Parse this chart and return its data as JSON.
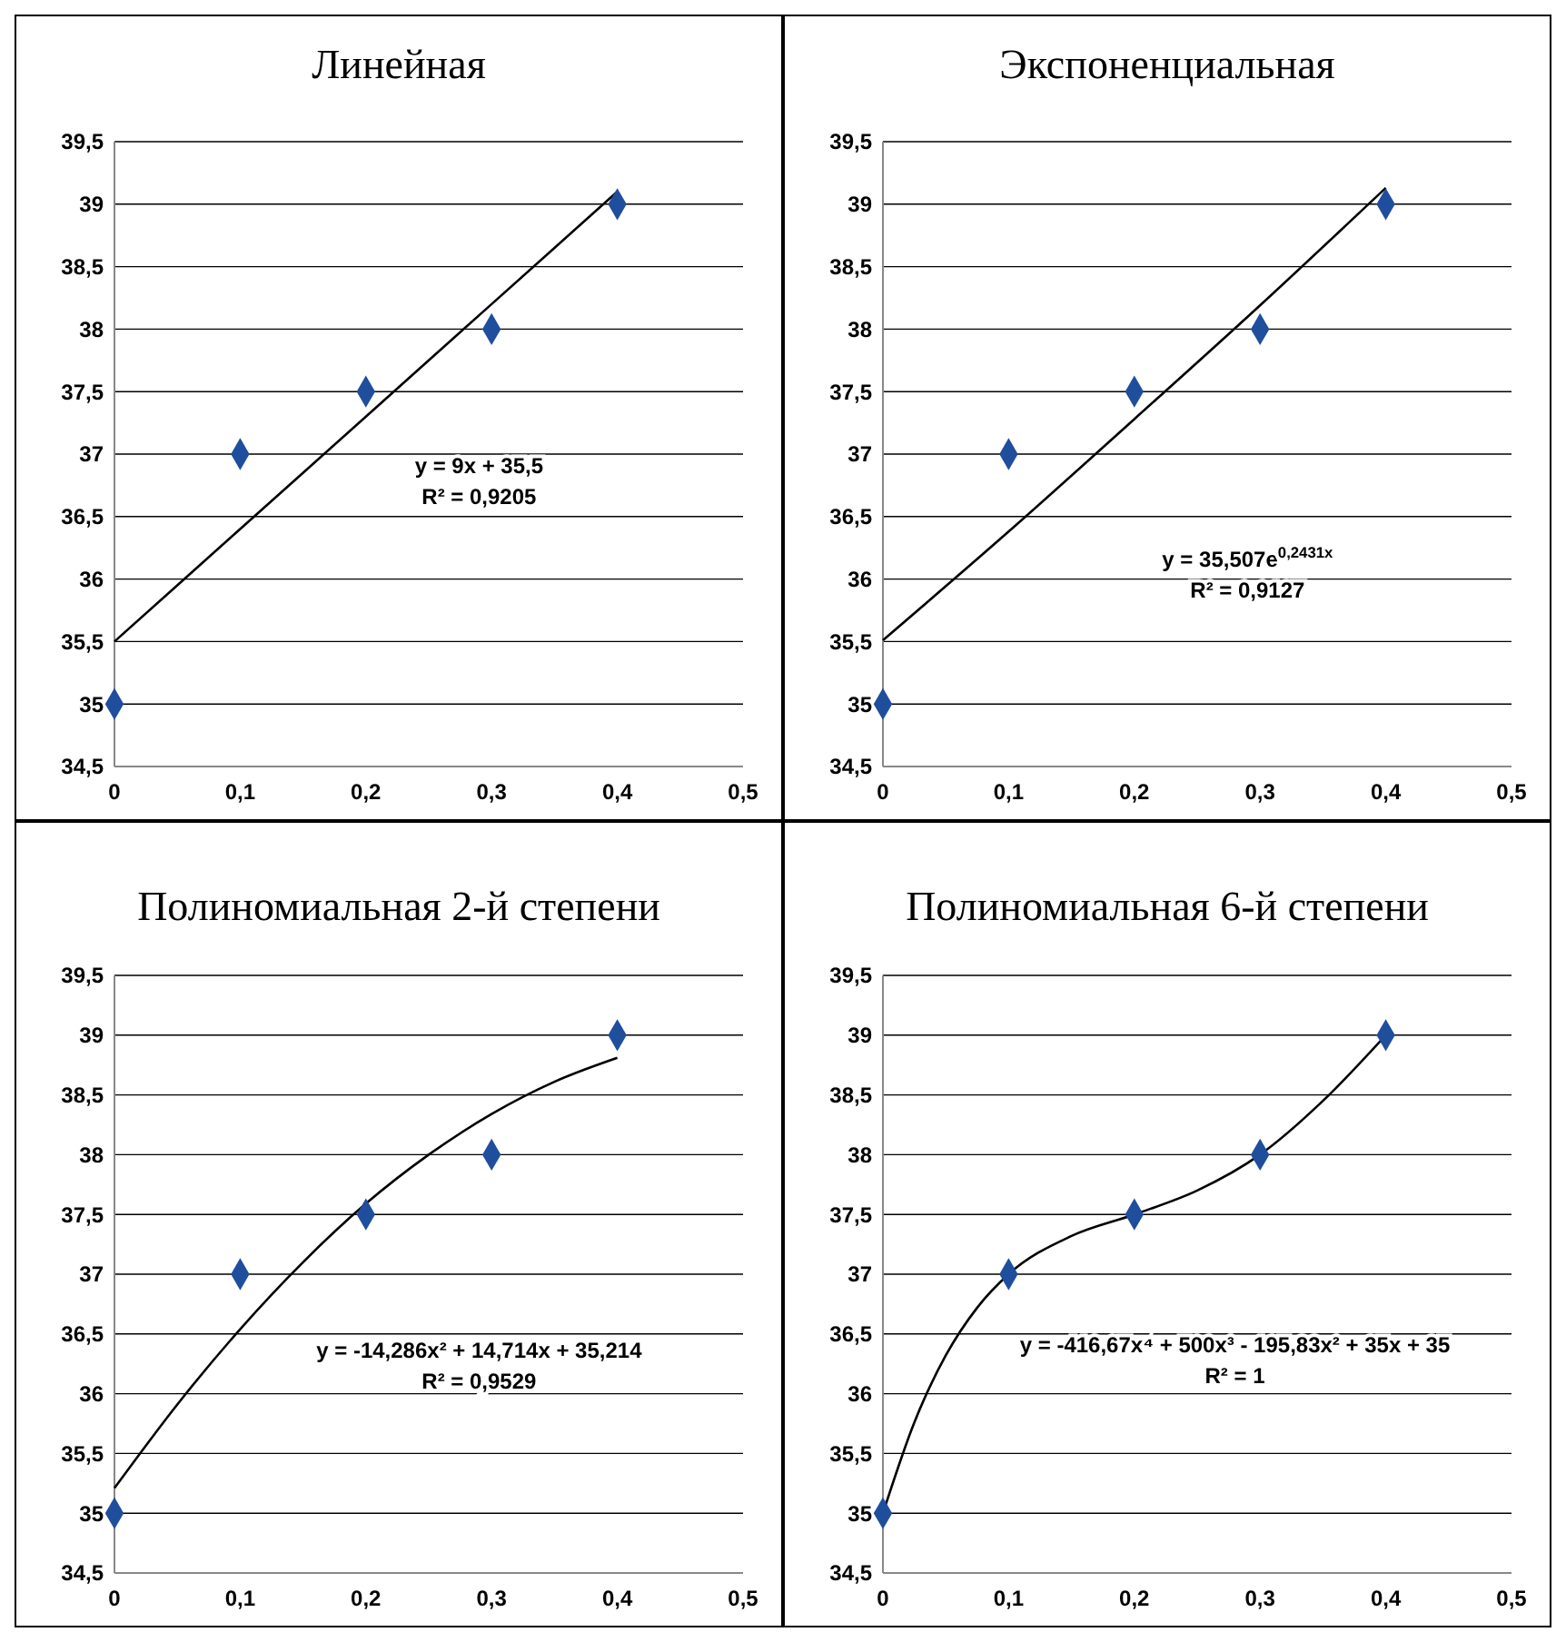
{
  "chart_data": [
    {
      "type": "scatter",
      "title": "Линейная",
      "xlim": [
        0,
        0.5
      ],
      "ylim": [
        34.5,
        39.5
      ],
      "grid": "y",
      "line_style": "solid",
      "xticks": [
        {
          "value": 0,
          "label": "0"
        },
        {
          "value": 0.1,
          "label": "0,1"
        },
        {
          "value": 0.2,
          "label": "0,2"
        },
        {
          "value": 0.3,
          "label": "0,3"
        },
        {
          "value": 0.4,
          "label": "0,4"
        },
        {
          "value": 0.5,
          "label": "0,5"
        }
      ],
      "yticks": [
        {
          "value": 34.5,
          "label": "34,5"
        },
        35,
        {
          "value": 35.5,
          "label": "35,5"
        },
        36,
        {
          "value": 36.5,
          "label": "36,5"
        },
        37,
        {
          "value": 37.5,
          "label": "37,5"
        },
        38,
        {
          "value": 38.5,
          "label": "38,5"
        },
        39,
        {
          "value": 39.5,
          "label": "39,5"
        }
      ],
      "annotations": [
        "y = 9x + 35,5",
        "R² = 0,9205"
      ],
      "series": [
        {
          "color": "#1f4e9c",
          "marker": "diamond",
          "x": [
            0,
            0.1,
            0.2,
            0.3,
            0.4
          ],
          "values": [
            35,
            37,
            37.5,
            38,
            39
          ]
        },
        {
          "type": "line",
          "color": "#000000",
          "marker": "none",
          "x": [
            0,
            0.1,
            0.2,
            0.3,
            0.4
          ],
          "values": [
            35.5,
            36.4,
            37.3,
            38.2,
            39.1
          ]
        }
      ]
    },
    {
      "type": "scatter",
      "title": "Экспоненциальная",
      "xlim": [
        0,
        0.5
      ],
      "ylim": [
        34.5,
        39.5
      ],
      "grid": "y",
      "line_style": "solid",
      "xticks": [
        {
          "value": 0,
          "label": "0"
        },
        {
          "value": 0.1,
          "label": "0,1"
        },
        {
          "value": 0.2,
          "label": "0,2"
        },
        {
          "value": 0.3,
          "label": "0,3"
        },
        {
          "value": 0.4,
          "label": "0,4"
        },
        {
          "value": 0.5,
          "label": "0,5"
        }
      ],
      "yticks": [
        {
          "value": 34.5,
          "label": "34,5"
        },
        35,
        {
          "value": 35.5,
          "label": "35,5"
        },
        36,
        {
          "value": 36.5,
          "label": "36,5"
        },
        37,
        {
          "value": 37.5,
          "label": "37,5"
        },
        38,
        {
          "value": 38.5,
          "label": "38,5"
        },
        39,
        {
          "value": 39.5,
          "label": "39,5"
        }
      ],
      "annotations": [
        "y = 35,507e$^{0,2431x}$",
        "R² = 0,9127"
      ],
      "series": [
        {
          "color": "#1f4e9c",
          "marker": "diamond",
          "x": [
            0,
            0.1,
            0.2,
            0.3,
            0.4
          ],
          "values": [
            35,
            37,
            37.5,
            38,
            39
          ]
        },
        {
          "type": "line",
          "color": "#000000",
          "marker": "none",
          "x": [
            0,
            0.1,
            0.2,
            0.3,
            0.4
          ],
          "values": [
            35.51,
            36.38,
            37.28,
            38.19,
            39.13
          ]
        }
      ]
    },
    {
      "type": "scatter",
      "title": "Полиномиальная 2-й степени",
      "xlim": [
        0,
        0.5
      ],
      "ylim": [
        34.5,
        39.5
      ],
      "grid": "y",
      "line_style": "solid",
      "xticks": [
        {
          "value": 0,
          "label": "0"
        },
        {
          "value": 0.1,
          "label": "0,1"
        },
        {
          "value": 0.2,
          "label": "0,2"
        },
        {
          "value": 0.3,
          "label": "0,3"
        },
        {
          "value": 0.4,
          "label": "0,4"
        },
        {
          "value": 0.5,
          "label": "0,5"
        }
      ],
      "yticks": [
        {
          "value": 34.5,
          "label": "34,5"
        },
        35,
        {
          "value": 35.5,
          "label": "35,5"
        },
        36,
        {
          "value": 36.5,
          "label": "36,5"
        },
        37,
        {
          "value": 37.5,
          "label": "37,5"
        },
        38,
        {
          "value": 38.5,
          "label": "38,5"
        },
        39,
        {
          "value": 39.5,
          "label": "39,5"
        }
      ],
      "annotations": [
        "y = -14,286x² + 14,714x + 35,214",
        "R² = 0,9529"
      ],
      "series": [
        {
          "color": "#1f4e9c",
          "marker": "diamond",
          "x": [
            0,
            0.1,
            0.2,
            0.3,
            0.4
          ],
          "values": [
            35,
            37,
            37.5,
            38,
            39
          ]
        },
        {
          "type": "line",
          "color": "#000000",
          "marker": "none",
          "x": [
            0,
            0.05,
            0.1,
            0.15,
            0.2,
            0.25,
            0.3,
            0.35,
            0.4
          ],
          "values": [
            35.21,
            35.91,
            36.54,
            37.1,
            37.59,
            38.0,
            38.34,
            38.61,
            38.81
          ]
        }
      ]
    },
    {
      "type": "scatter",
      "title": "Полиномиальная 6-й степени",
      "xlim": [
        0,
        0.5
      ],
      "ylim": [
        34.5,
        39.5
      ],
      "grid": "y",
      "line_style": "solid",
      "xticks": [
        {
          "value": 0,
          "label": "0"
        },
        {
          "value": 0.1,
          "label": "0,1"
        },
        {
          "value": 0.2,
          "label": "0,2"
        },
        {
          "value": 0.3,
          "label": "0,3"
        },
        {
          "value": 0.4,
          "label": "0,4"
        },
        {
          "value": 0.5,
          "label": "0,5"
        }
      ],
      "yticks": [
        {
          "value": 34.5,
          "label": "34,5"
        },
        35,
        {
          "value": 35.5,
          "label": "35,5"
        },
        36,
        {
          "value": 36.5,
          "label": "36,5"
        },
        37,
        {
          "value": 37.5,
          "label": "37,5"
        },
        38,
        {
          "value": 38.5,
          "label": "38,5"
        },
        39,
        {
          "value": 39.5,
          "label": "39,5"
        }
      ],
      "annotations": [
        "y = -416,67x⁴ + 500x³ - 195,83x² + 35x + 35",
        "R² = 1"
      ],
      "series": [
        {
          "color": "#1f4e9c",
          "marker": "diamond",
          "x": [
            0,
            0.1,
            0.2,
            0.3,
            0.4
          ],
          "values": [
            35,
            37,
            37.5,
            38,
            39
          ]
        },
        {
          "type": "line",
          "color": "#000000",
          "marker": "none",
          "x": [
            0,
            0.025,
            0.05,
            0.075,
            0.1,
            0.15,
            0.2,
            0.25,
            0.3,
            0.35,
            0.4
          ],
          "values": [
            35,
            35.76,
            36.32,
            36.72,
            37,
            37.32,
            37.5,
            37.7,
            38,
            38.45,
            39
          ]
        }
      ]
    }
  ]
}
